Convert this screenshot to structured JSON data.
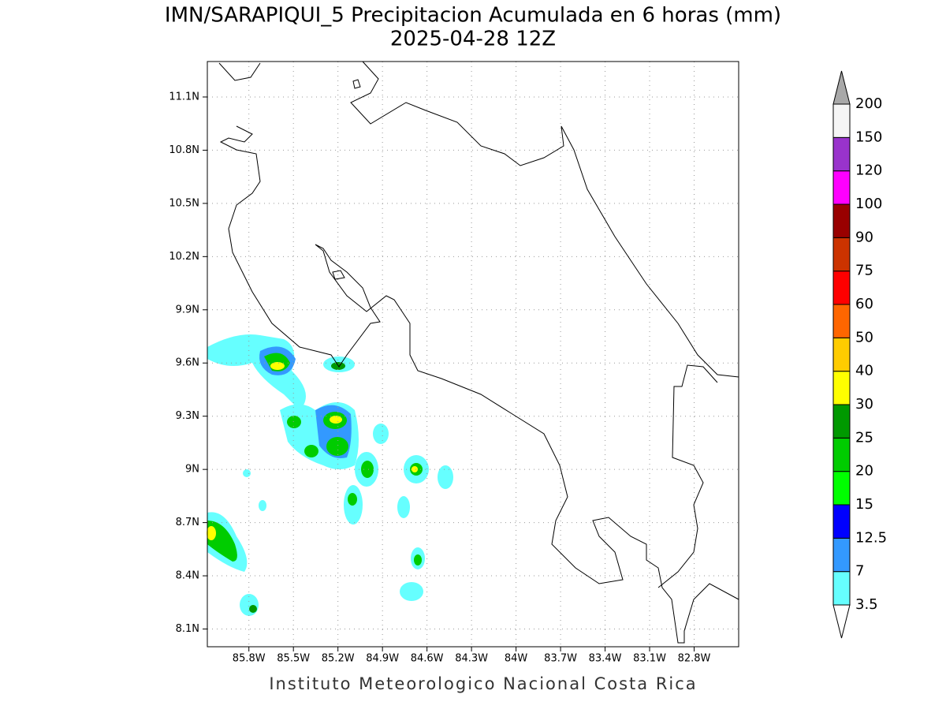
{
  "title": [
    "IMN/SARAPIQUI_5 Precipitacion Acumulada en 6 horas (mm)",
    "2025-04-28 12Z"
  ],
  "map": {
    "lonlim": [
      -86.08,
      -82.5
    ],
    "latlim": [
      8.0,
      11.3
    ],
    "lon_ticks": [
      {
        "value": -85.8,
        "label": "85.8W"
      },
      {
        "value": -85.5,
        "label": "85.5W"
      },
      {
        "value": -85.2,
        "label": "85.2W"
      },
      {
        "value": -84.9,
        "label": "84.9W"
      },
      {
        "value": -84.6,
        "label": "84.6W"
      },
      {
        "value": -84.3,
        "label": "84.3W"
      },
      {
        "value": -84,
        "label": "84W"
      },
      {
        "value": -83.7,
        "label": "83.7W"
      },
      {
        "value": -83.4,
        "label": "83.4W"
      },
      {
        "value": -83.1,
        "label": "83.1W"
      },
      {
        "value": -82.8,
        "label": "82.8W"
      }
    ],
    "lat_ticks": [
      {
        "value": 8.1,
        "label": "8.1N"
      },
      {
        "value": 8.4,
        "label": "8.4N"
      },
      {
        "value": 8.7,
        "label": "8.7N"
      },
      {
        "value": 9,
        "label": "9N"
      },
      {
        "value": 9.3,
        "label": "9.3N"
      },
      {
        "value": 9.6,
        "label": "9.6N"
      },
      {
        "value": 9.9,
        "label": "9.9N"
      },
      {
        "value": 10.2,
        "label": "10.2N"
      },
      {
        "value": 10.5,
        "label": "10.5N"
      },
      {
        "value": 10.8,
        "label": "10.8N"
      },
      {
        "value": 11.1,
        "label": "11.1N"
      }
    ]
  },
  "colorbar": {
    "levels": [
      3.5,
      7,
      12.5,
      15,
      20,
      25,
      30,
      40,
      50,
      60,
      75,
      90,
      100,
      120,
      150,
      200
    ],
    "colors": [
      "#66ffff",
      "#3399ff",
      "#0000ff",
      "#00ff00",
      "#00cc00",
      "#009900",
      "#ffff00",
      "#ffcc00",
      "#ff6600",
      "#ff0000",
      "#cc3300",
      "#990000",
      "#ff00ff",
      "#9933cc",
      "#f5f5f5"
    ],
    "over_color": "#a8a8a8",
    "under_color": "#ffffff"
  },
  "footer": "Instituto Meteorologico Nacional Costa Rica"
}
